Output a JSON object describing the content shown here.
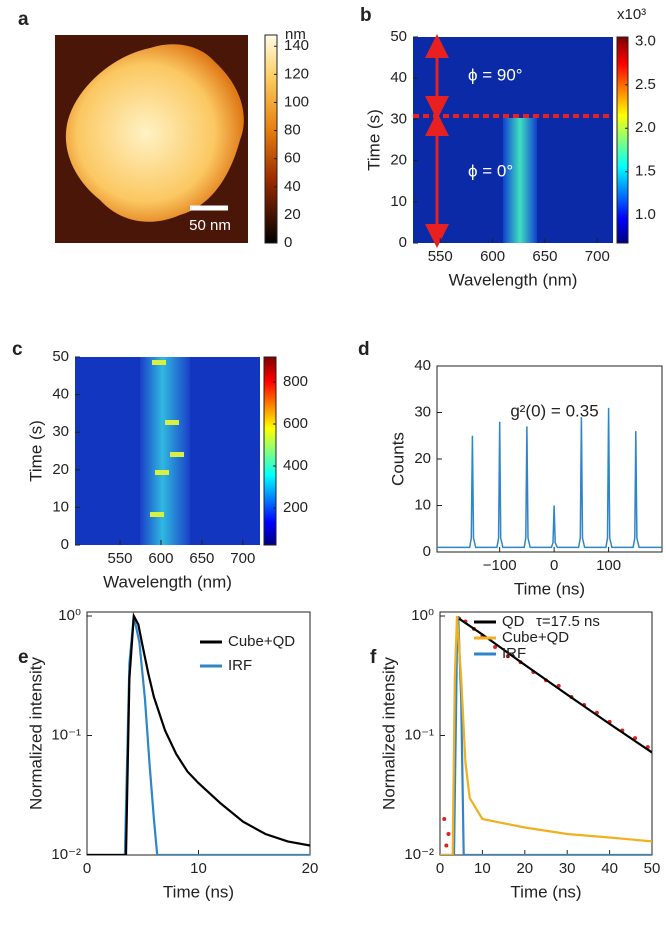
{
  "chart_data": [
    {
      "type": "image",
      "label": "a",
      "annotations": [
        "50 nm"
      ],
      "colorbar": {
        "label": "nm",
        "colormap": "afmhot",
        "lim": [
          0,
          148
        ],
        "ticks": [
          0,
          20,
          40,
          60,
          80,
          100,
          120,
          140
        ]
      }
    },
    {
      "type": "heatmap",
      "label": "b",
      "xlabel": "Wavelength (nm)",
      "ylabel": "Time (s)",
      "xlim": [
        524,
        715
      ],
      "xticks": [
        550,
        600,
        650,
        700
      ],
      "ylim": [
        0,
        50
      ],
      "yticks": [
        0,
        10,
        20,
        30,
        40,
        50
      ],
      "annotations": [
        "ϕ = 90°",
        "ϕ = 0°"
      ],
      "colorbar": {
        "label": "x10³",
        "colormap": "jet",
        "lim": [
          0.68,
          3.05
        ],
        "ticks": [
          {
            "value": 1,
            "label": "1.0"
          },
          1.5,
          {
            "value": 2,
            "label": "2.0"
          },
          2.5,
          {
            "value": 3,
            "label": "3.0"
          }
        ]
      }
    },
    {
      "type": "heatmap",
      "label": "c",
      "xlabel": "Wavelength (nm)",
      "ylabel": "Time (s)",
      "xlim": [
        495,
        721
      ],
      "xticks": [
        550,
        600,
        650,
        700
      ],
      "ylim": [
        0,
        50
      ],
      "yticks": [
        0,
        10,
        20,
        30,
        40,
        50
      ],
      "colorbar": {
        "colormap": "jet",
        "lim": [
          24,
          919
        ],
        "ticks": [
          200,
          400,
          600,
          800
        ]
      }
    },
    {
      "type": "line",
      "label": "d",
      "xlabel": "Time  (ns)",
      "ylabel": "Counts",
      "annotations": [
        "g²(0) = 0.35"
      ],
      "xlim": [
        -215,
        198
      ],
      "xticks": [
        {
          "value": -100,
          "label": "−100"
        },
        0,
        100
      ],
      "ylim": [
        0,
        40
      ],
      "yticks": [
        0,
        10,
        20,
        30,
        40
      ],
      "series": [
        {
          "color": "#2f86c6",
          "x": [
            -215,
            -155,
            -152,
            -150,
            -148,
            -144,
            -105,
            -102,
            -100,
            -98,
            -94,
            -55,
            -52,
            -50,
            -48,
            -44,
            -5,
            -2,
            0,
            2,
            6,
            45,
            48,
            50,
            52,
            56,
            95,
            98,
            100,
            102,
            106,
            145,
            148,
            150,
            152,
            156,
            198
          ],
          "values": [
            1,
            1,
            3,
            25,
            3,
            1,
            1,
            3,
            28,
            3,
            1,
            1,
            3,
            27,
            3,
            1,
            1,
            2,
            10,
            2,
            1,
            1,
            3,
            29,
            3,
            1,
            1,
            3,
            31,
            3,
            1,
            1,
            3,
            26,
            3,
            1,
            1
          ]
        }
      ]
    },
    {
      "type": "line",
      "label": "e",
      "xlabel": "Time (ns)",
      "ylabel": "Normalized intensity",
      "log_y": true,
      "legend": "upper right",
      "xlim": [
        0,
        20
      ],
      "xticks": [
        0,
        10,
        20
      ],
      "ylim": [
        0.01,
        1.08
      ],
      "yticks": [
        {
          "value": 0.01,
          "label": "10⁻²"
        },
        {
          "value": 0.1,
          "label": "10⁻¹"
        },
        {
          "value": 1,
          "label": "10⁰"
        }
      ],
      "series": [
        {
          "name": "Cube+QD",
          "color": "#000000",
          "x": [
            0,
            3.5,
            3.8,
            4.2,
            4.6,
            5,
            5.5,
            6,
            7,
            8,
            9,
            10,
            12,
            14,
            16,
            18,
            20
          ],
          "values": [
            0.01,
            0.01,
            0.3,
            1,
            0.85,
            0.55,
            0.33,
            0.21,
            0.11,
            0.07,
            0.05,
            0.04,
            0.027,
            0.019,
            0.015,
            0.013,
            0.012
          ]
        },
        {
          "name": "IRF",
          "color": "#2f86c6",
          "x": [
            0,
            3.4,
            3.8,
            4.2,
            4.7,
            5.2,
            5.6,
            6,
            6.3,
            20
          ],
          "values": [
            0.01,
            0.01,
            0.4,
            1,
            0.6,
            0.2,
            0.06,
            0.02,
            0.01,
            0.01
          ]
        }
      ]
    },
    {
      "type": "line",
      "label": "f",
      "xlabel": "Time (ns)",
      "ylabel": "Normalized intensity",
      "log_y": true,
      "legend": "upper right",
      "annotations": [
        "τ=17.5 ns"
      ],
      "xlim": [
        0,
        50
      ],
      "xticks": [
        0,
        10,
        20,
        30,
        40,
        50
      ],
      "ylim": [
        0.01,
        1.08
      ],
      "yticks": [
        {
          "value": 0.01,
          "label": "10⁻²"
        },
        {
          "value": 0.1,
          "label": "10⁻¹"
        },
        {
          "value": 1,
          "label": "10⁰"
        }
      ],
      "series": [
        {
          "name": "QD",
          "color": "#000000",
          "x": [
            4.5,
            10,
            20,
            30,
            40,
            50
          ],
          "values": [
            0.95,
            0.7,
            0.39,
            0.22,
            0.125,
            0.072
          ]
        },
        {
          "name": "Cube+QD",
          "color": "#f0b020",
          "x": [
            0,
            3,
            3.5,
            4,
            5,
            6,
            7,
            10,
            20,
            30,
            40,
            50
          ],
          "values": [
            0.01,
            0.01,
            0.3,
            1,
            0.3,
            0.06,
            0.03,
            0.02,
            0.017,
            0.015,
            0.014,
            0.013
          ]
        },
        {
          "name": "IRF",
          "color": "#2f86c6",
          "x": [
            0,
            3.3,
            4,
            4.3,
            5,
            5.6,
            50
          ],
          "values": [
            0.01,
            0.01,
            0.6,
            1,
            0.2,
            0.01,
            0.01
          ]
        },
        {
          "color": "#e02020",
          "mode": "markers",
          "x": [
            1,
            1.5,
            2,
            4.5,
            6,
            8,
            10,
            13,
            16,
            19,
            22,
            25,
            28,
            31,
            34,
            37,
            40,
            43,
            46,
            49
          ],
          "values": [
            0.02,
            0.012,
            0.015,
            0.95,
            0.9,
            0.78,
            0.68,
            0.55,
            0.46,
            0.41,
            0.34,
            0.29,
            0.26,
            0.21,
            0.18,
            0.155,
            0.13,
            0.11,
            0.095,
            0.08
          ]
        }
      ]
    }
  ]
}
